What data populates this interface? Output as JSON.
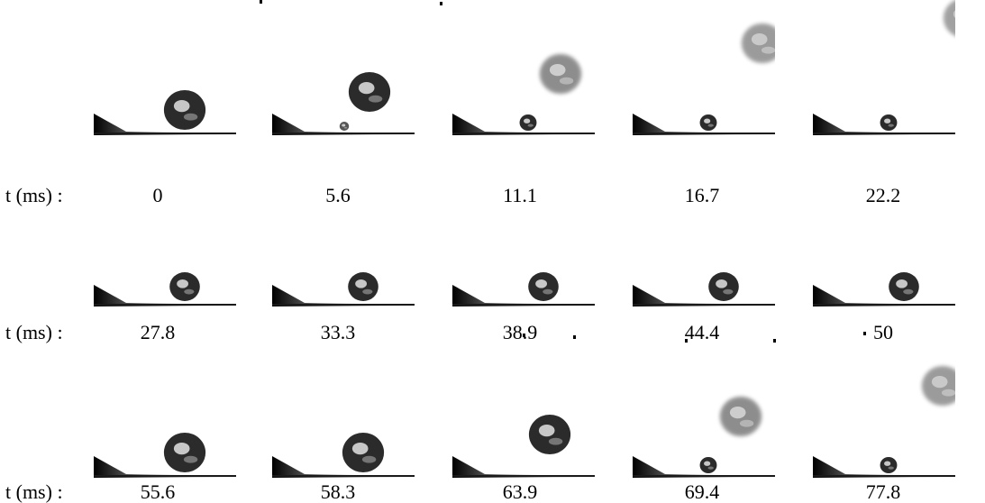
{
  "row_label": "t (ms) :",
  "rows": [
    {
      "frames": [
        {
          "time": "0",
          "main_drop": "large",
          "satellite": "none",
          "airborne": "none"
        },
        {
          "time": "5.6",
          "main_drop": "lifting",
          "satellite": "tiny",
          "airborne": "none"
        },
        {
          "time": "11.1",
          "main_drop": "none",
          "satellite": "small",
          "airborne": "mid"
        },
        {
          "time": "16.7",
          "main_drop": "none",
          "satellite": "small",
          "airborne": "high"
        },
        {
          "time": "22.2",
          "main_drop": "none",
          "satellite": "small",
          "airborne": "exit"
        }
      ]
    },
    {
      "frames": [
        {
          "time": "27.8",
          "main_drop": "medium",
          "satellite": "none",
          "airborne": "none"
        },
        {
          "time": "33.3",
          "main_drop": "medium",
          "satellite": "none",
          "airborne": "none"
        },
        {
          "time": "38.9",
          "main_drop": "medium",
          "satellite": "none",
          "airborne": "none"
        },
        {
          "time": "44.4",
          "main_drop": "medium",
          "satellite": "none",
          "airborne": "none"
        },
        {
          "time": "50",
          "main_drop": "medium",
          "satellite": "none",
          "airborne": "none"
        }
      ]
    },
    {
      "frames": [
        {
          "time": "55.6",
          "main_drop": "large",
          "satellite": "none",
          "airborne": "none"
        },
        {
          "time": "58.3",
          "main_drop": "large",
          "satellite": "none",
          "airborne": "none"
        },
        {
          "time": "63.9",
          "main_drop": "lifting",
          "satellite": "none",
          "airborne": "none"
        },
        {
          "time": "69.4",
          "main_drop": "none",
          "satellite": "small",
          "airborne": "mid"
        },
        {
          "time": "77.8",
          "main_drop": "none",
          "satellite": "small",
          "airborne": "high"
        }
      ]
    }
  ],
  "colors": {
    "background": "#ffffff",
    "drop_dark": "#2b2b2b",
    "drop_highlight": "#d8d8d8",
    "airborne_drop": "#7a7a7a",
    "substrate": "#1a1a1a"
  }
}
